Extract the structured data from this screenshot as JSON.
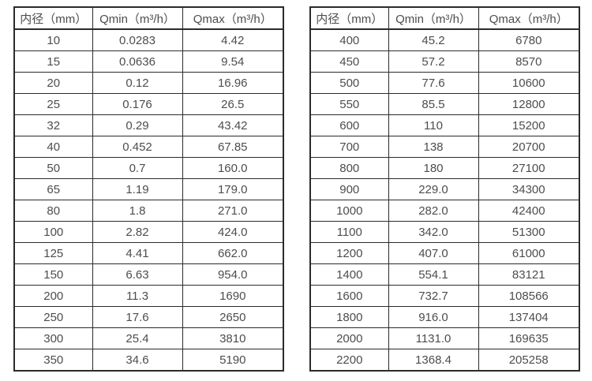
{
  "page": {
    "background": "#ffffff",
    "text_color": "#4d4d4d",
    "border_color": "#2b2b2b"
  },
  "tables": [
    {
      "id": "small-diameters",
      "headers": [
        "内径（mm）",
        "Qmin（m³/h）",
        "Qmax（m³/h）"
      ],
      "rows": [
        [
          "10",
          "0.0283",
          "4.42"
        ],
        [
          "15",
          "0.0636",
          "9.54"
        ],
        [
          "20",
          "0.12",
          "16.96"
        ],
        [
          "25",
          "0.176",
          "26.5"
        ],
        [
          "32",
          "0.29",
          "43.42"
        ],
        [
          "40",
          "0.452",
          "67.85"
        ],
        [
          "50",
          "0.7",
          "160.0"
        ],
        [
          "65",
          "1.19",
          "179.0"
        ],
        [
          "80",
          "1.8",
          "271.0"
        ],
        [
          "100",
          "2.82",
          "424.0"
        ],
        [
          "125",
          "4.41",
          "662.0"
        ],
        [
          "150",
          "6.63",
          "954.0"
        ],
        [
          "200",
          "11.3",
          "1690"
        ],
        [
          "250",
          "17.6",
          "2650"
        ],
        [
          "300",
          "25.4",
          "3810"
        ],
        [
          "350",
          "34.6",
          "5190"
        ]
      ]
    },
    {
      "id": "large-diameters",
      "headers": [
        "内径（mm）",
        "Qmin（m³/h）",
        "Qmax（m³/h）"
      ],
      "rows": [
        [
          "400",
          "45.2",
          "6780"
        ],
        [
          "450",
          "57.2",
          "8570"
        ],
        [
          "500",
          "77.6",
          "10600"
        ],
        [
          "550",
          "85.5",
          "12800"
        ],
        [
          "600",
          "110",
          "15200"
        ],
        [
          "700",
          "138",
          "20700"
        ],
        [
          "800",
          "180",
          "27100"
        ],
        [
          "900",
          "229.0",
          "34300"
        ],
        [
          "1000",
          "282.0",
          "42400"
        ],
        [
          "1100",
          "342.0",
          "51300"
        ],
        [
          "1200",
          "407.0",
          "61000"
        ],
        [
          "1400",
          "554.1",
          "83121"
        ],
        [
          "1600",
          "732.7",
          "108566"
        ],
        [
          "1800",
          "916.0",
          "137404"
        ],
        [
          "2000",
          "1131.0",
          "169635"
        ],
        [
          "2200",
          "1368.4",
          "205258"
        ]
      ]
    }
  ]
}
